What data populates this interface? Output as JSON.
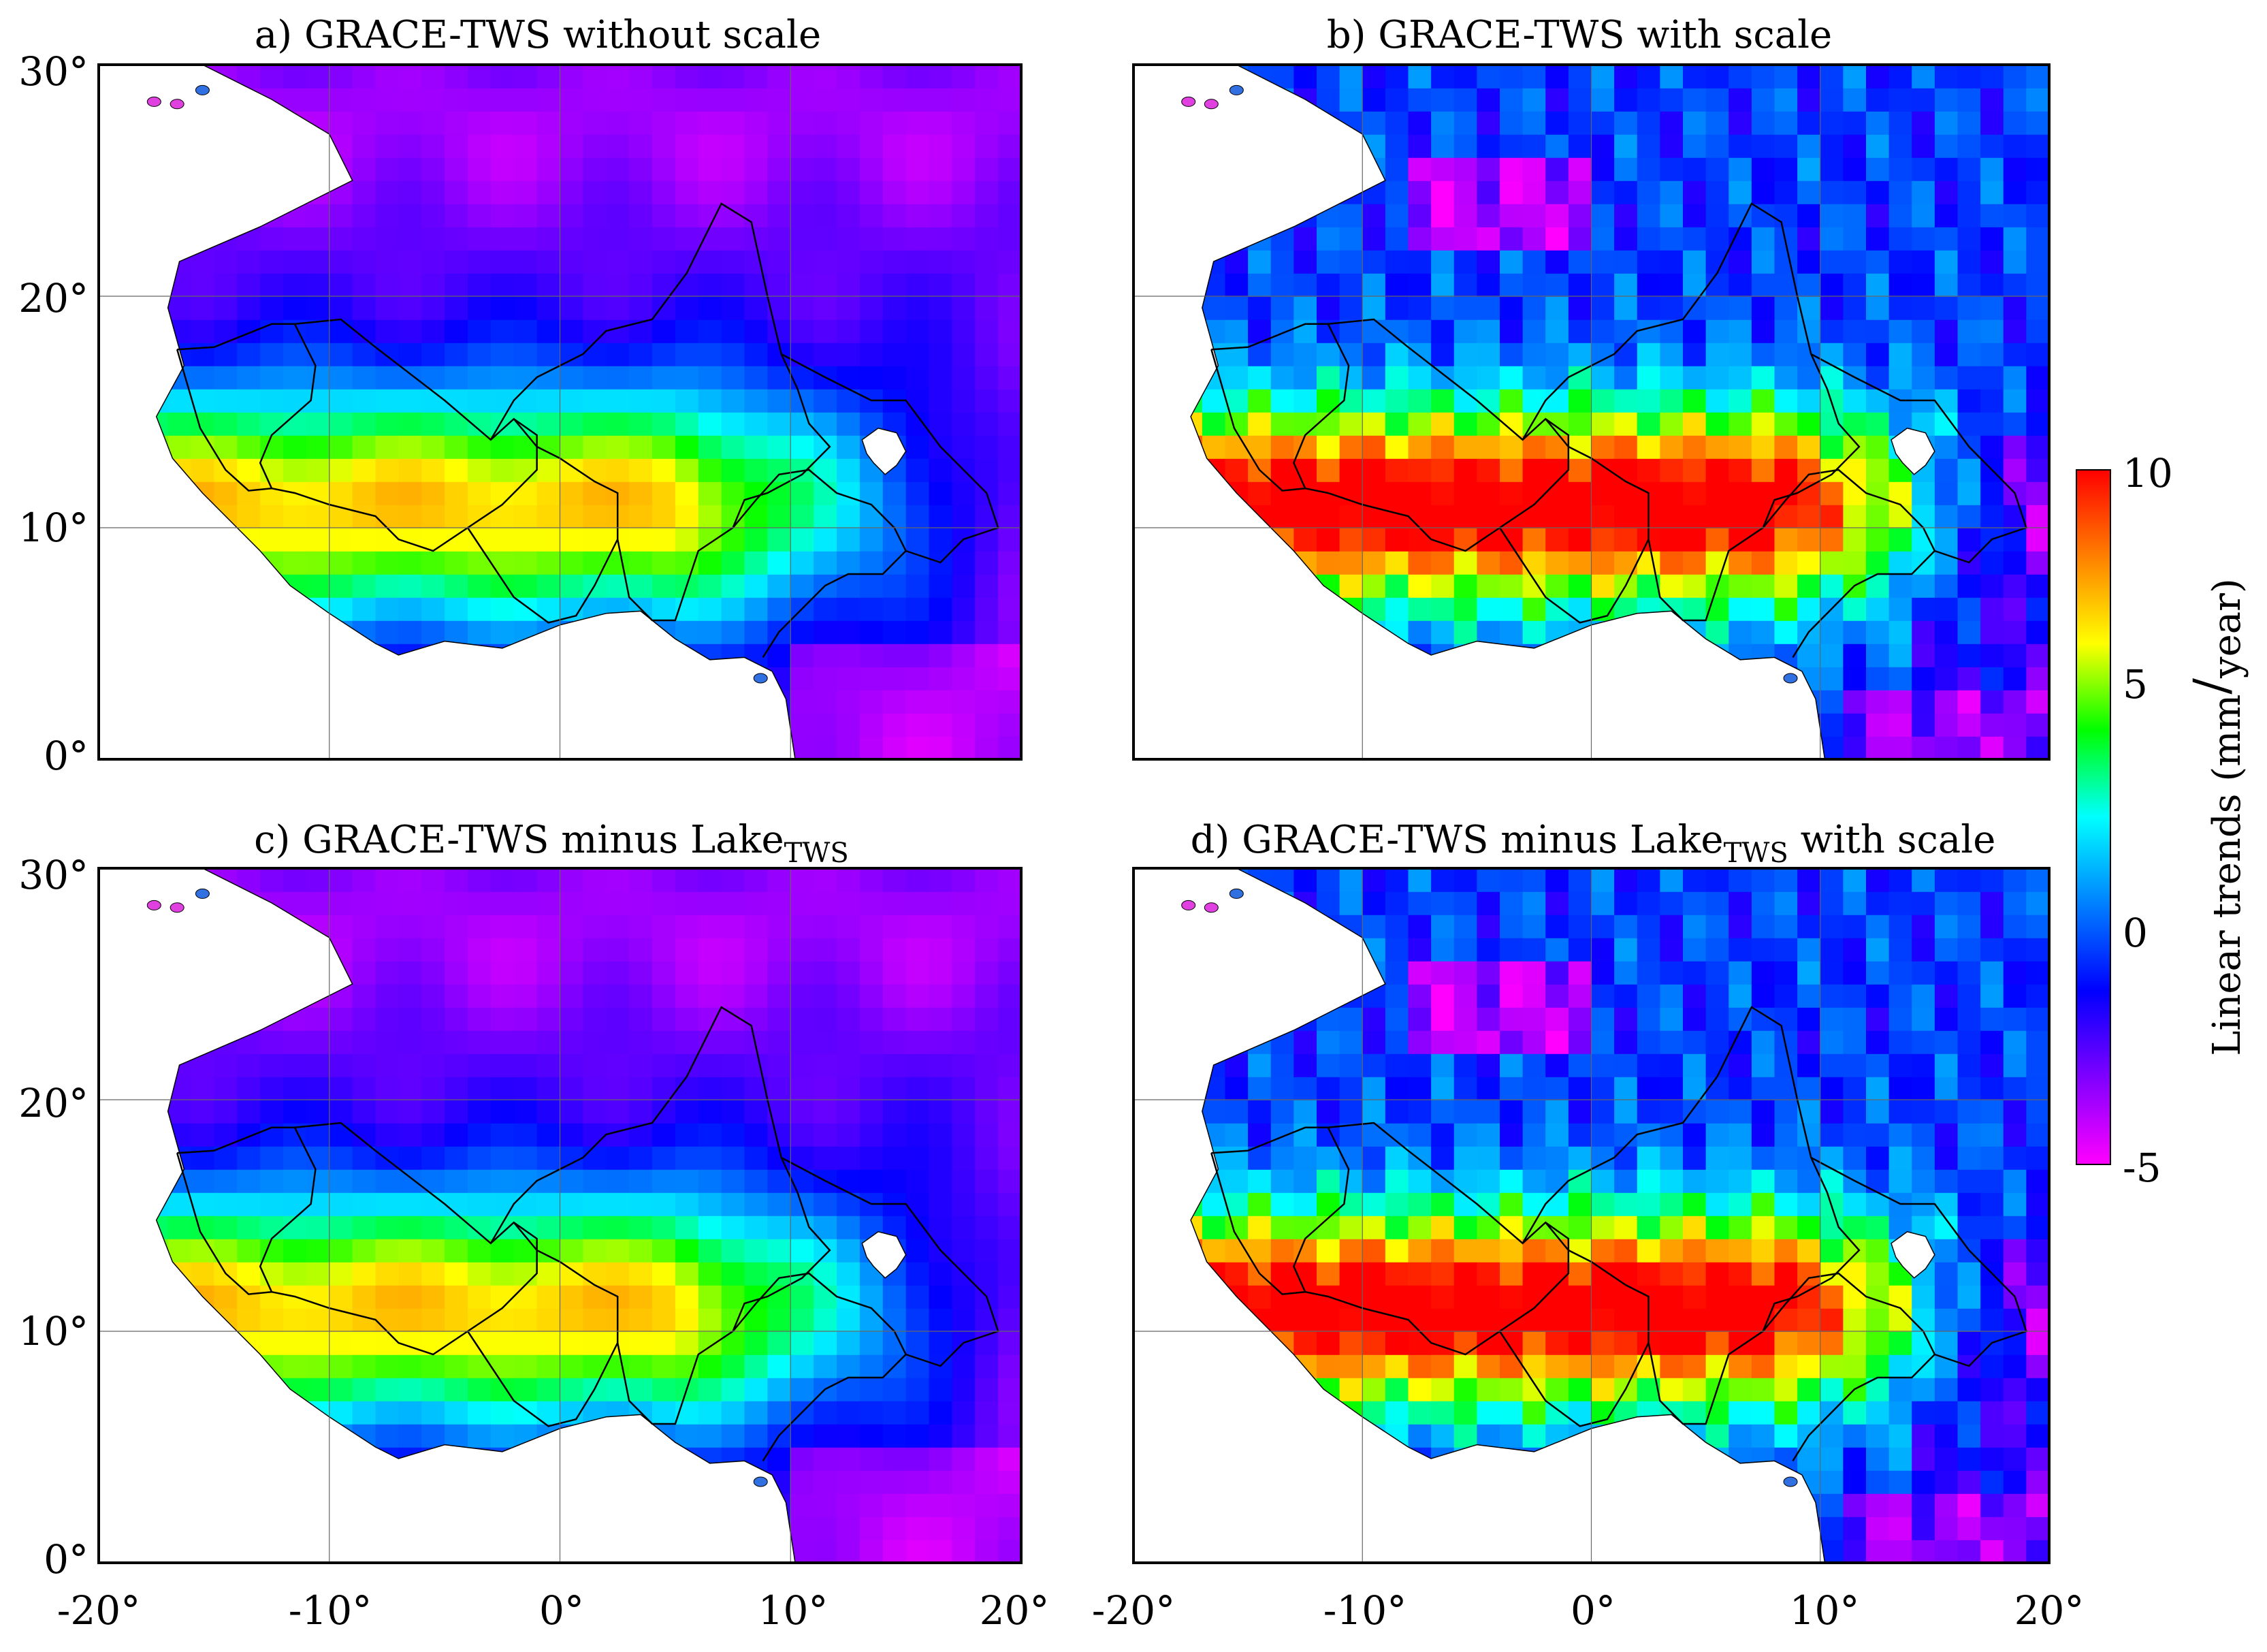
{
  "figure": {
    "panels": [
      {
        "id": "a",
        "title": "a) GRACE-TWS without scale",
        "sub": "",
        "variant": "a"
      },
      {
        "id": "b",
        "title": "b) GRACE-TWS with scale",
        "sub": "",
        "variant": "b"
      },
      {
        "id": "c",
        "title_pre": "c) GRACE-TWS minus Lake",
        "sub": "TWS",
        "title_post": "",
        "variant": "a"
      },
      {
        "id": "d",
        "title_pre": "d) GRACE-TWS minus Lake",
        "sub": "TWS",
        "title_post": " with scale",
        "variant": "b"
      }
    ],
    "lat_ticks": [
      "30°",
      "20°",
      "10°",
      "0°"
    ],
    "lon_ticks": [
      "-20°",
      "-10°",
      "0°",
      "10°",
      "20°"
    ],
    "colorbar": {
      "label_pre": "Linear trends (mm",
      "label_post": "year)",
      "ticks": [
        "10",
        "5",
        "0",
        "-5"
      ],
      "min": -5,
      "max": 10,
      "colors": [
        "#ff00ff",
        "#8000ff",
        "#0000ff",
        "#0080ff",
        "#00ffff",
        "#00ff00",
        "#ffff00",
        "#ff8000",
        "#ff0000"
      ]
    }
  }
}
